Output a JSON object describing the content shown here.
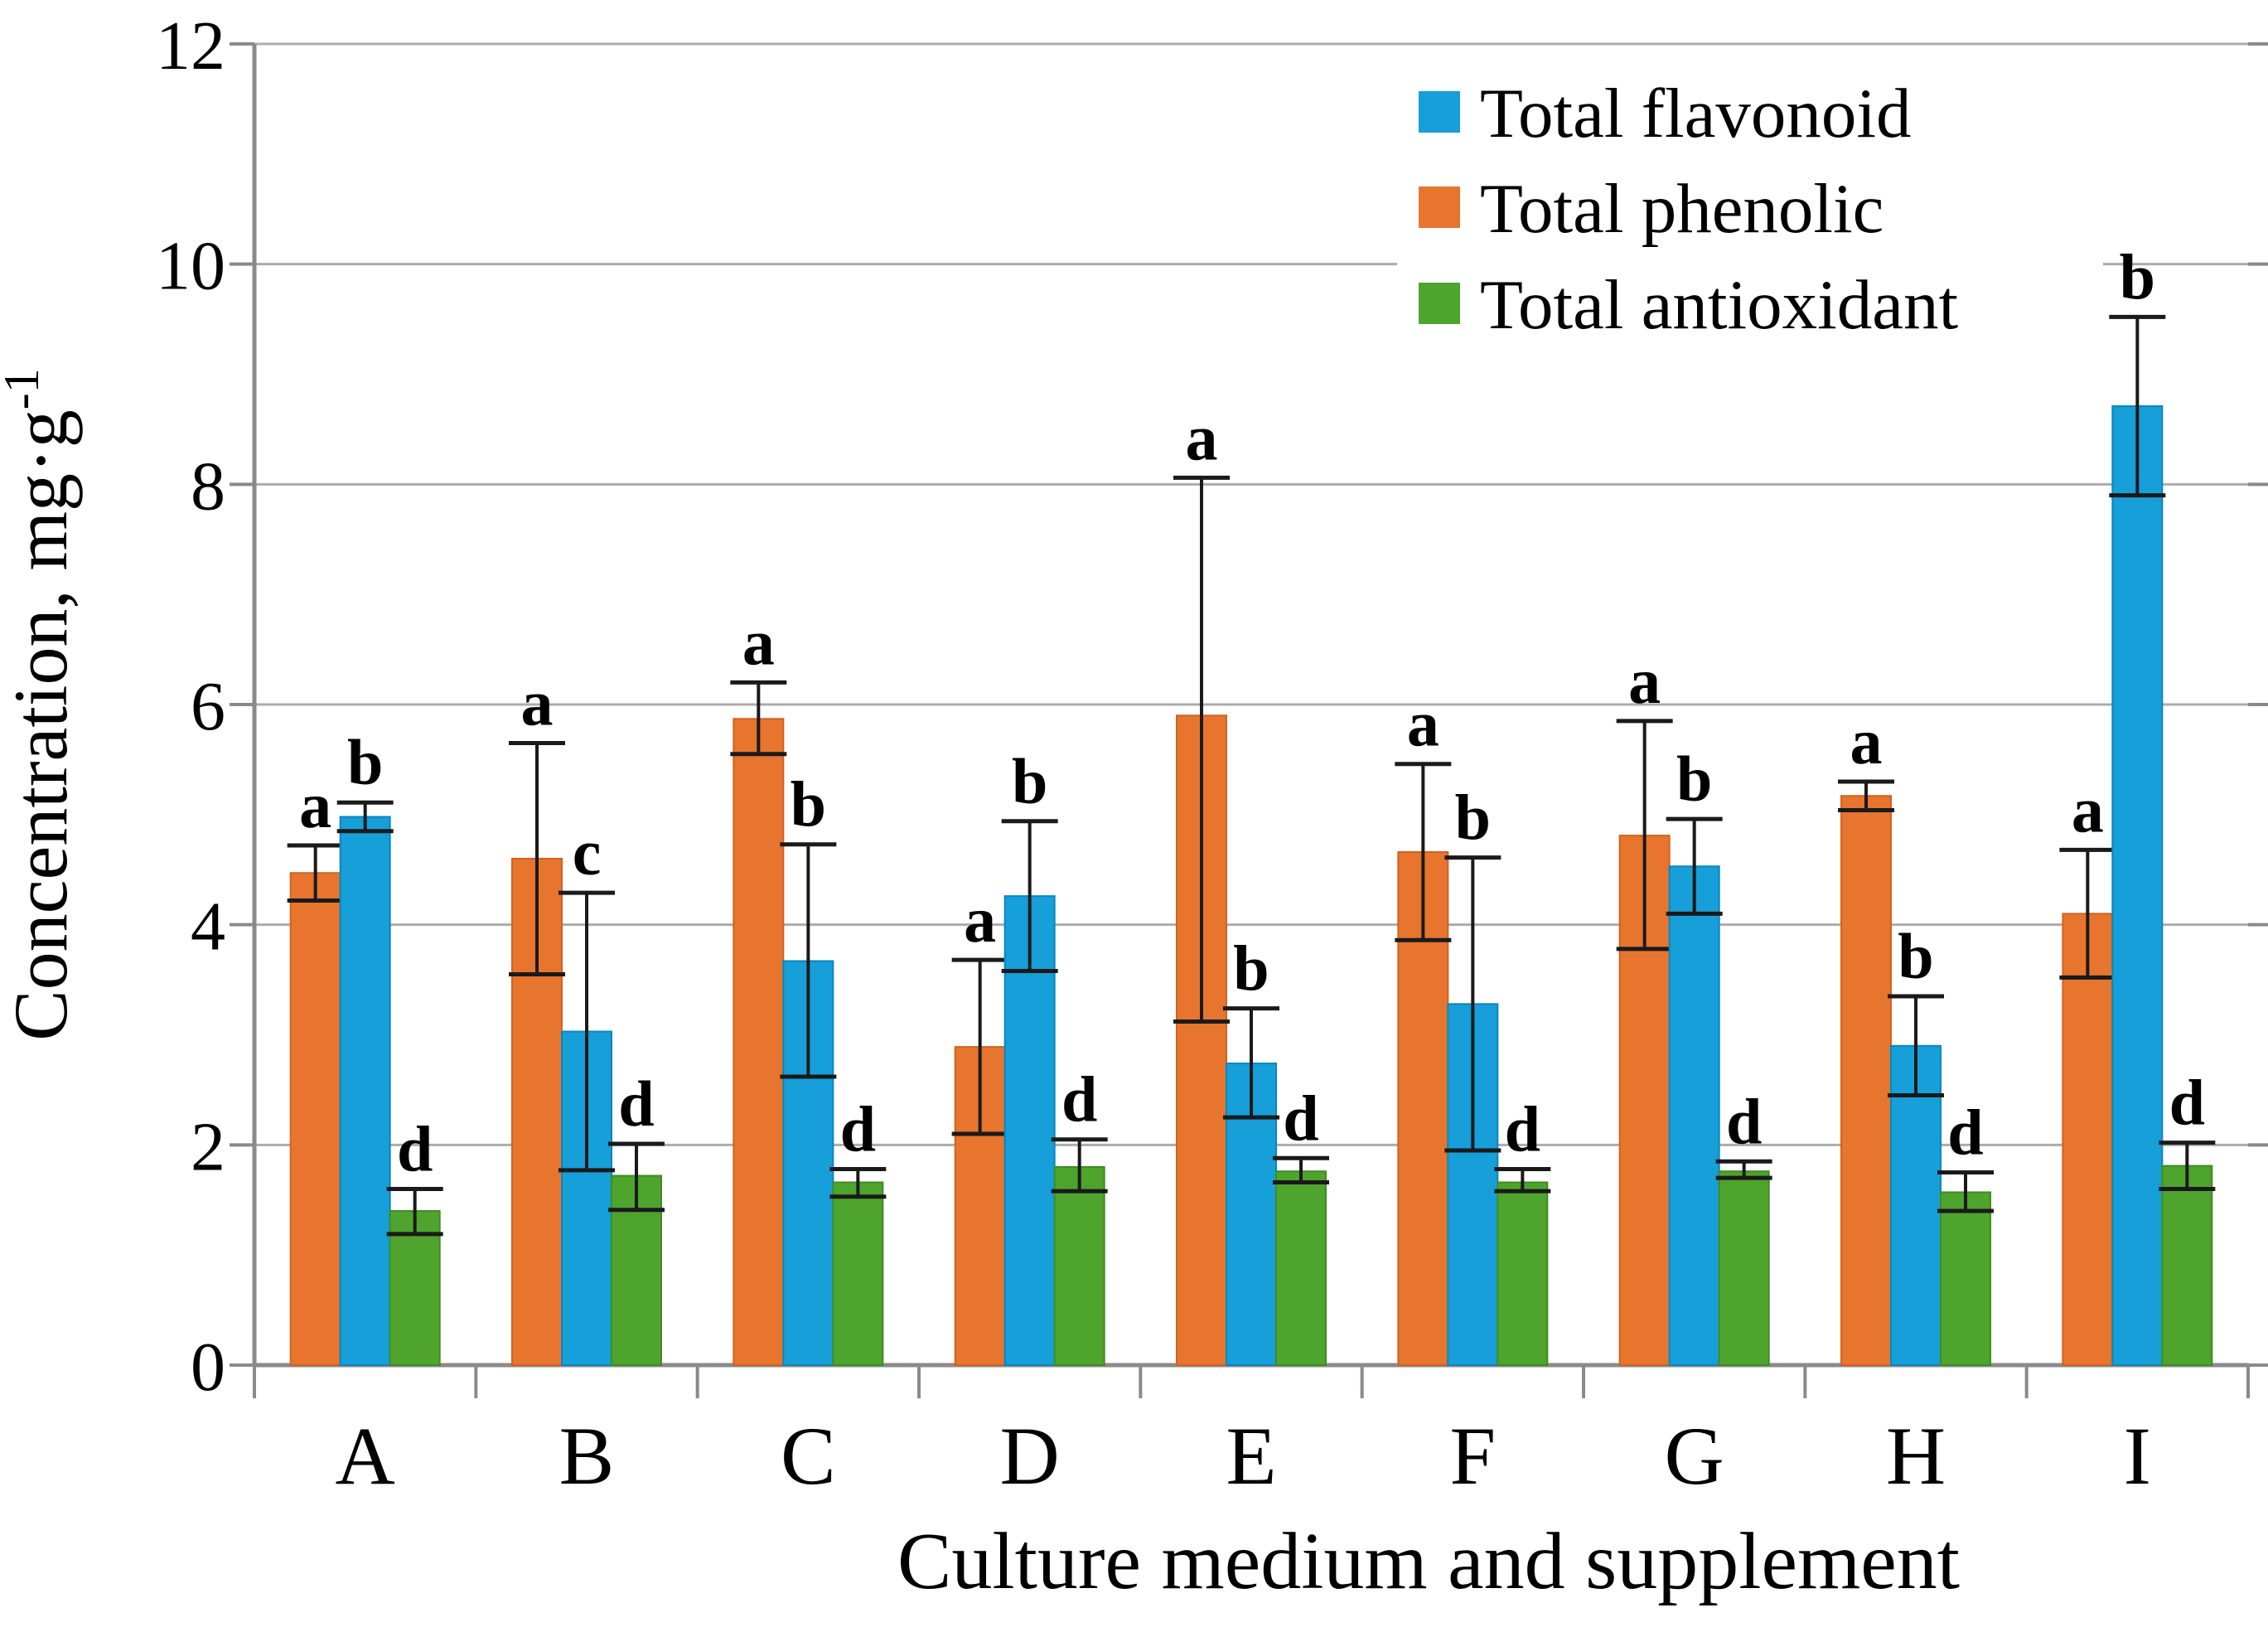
{
  "chart_data": {
    "type": "bar",
    "title": "",
    "xlabel": "Culture medium and supplement",
    "ylabel_main": "Concentration, mg·g",
    "ylabel_sup": "-1",
    "ylim": [
      0,
      12
    ],
    "yticks": [
      0,
      2,
      4,
      6,
      8,
      10,
      12
    ],
    "grid": true,
    "legend_position": "top-right",
    "categories": [
      "A",
      "B",
      "C",
      "D",
      "E",
      "F",
      "G",
      "H",
      "I"
    ],
    "group_bar_order": [
      1,
      0,
      2
    ],
    "series": [
      {
        "name": "Total flavonoid",
        "color": "#169FD9",
        "edge_color": "#0B86BC",
        "values": [
          4.98,
          3.03,
          3.67,
          4.26,
          2.74,
          3.28,
          4.53,
          2.9,
          8.71
        ],
        "err_up": [
          0.13,
          1.26,
          1.06,
          0.68,
          0.5,
          1.33,
          0.43,
          0.45,
          0.81
        ],
        "err_down": [
          0.13,
          1.26,
          1.05,
          0.68,
          0.49,
          1.33,
          0.43,
          0.45,
          0.81
        ],
        "letters": [
          "b",
          "c",
          "b",
          "b",
          "b",
          "b",
          "b",
          "b",
          "b"
        ]
      },
      {
        "name": "Total phenolic",
        "color": "#E7752E",
        "edge_color": "#D2621F",
        "values": [
          4.47,
          4.6,
          5.87,
          2.89,
          5.9,
          4.66,
          4.81,
          5.17,
          4.1
        ],
        "err_up": [
          0.25,
          1.05,
          0.33,
          0.79,
          2.16,
          0.8,
          1.04,
          0.13,
          0.58
        ],
        "err_down": [
          0.25,
          1.05,
          0.32,
          0.79,
          2.78,
          0.8,
          1.03,
          0.13,
          0.58
        ],
        "letters": [
          "a",
          "a",
          "a",
          "a",
          "a",
          "a",
          "a",
          "a",
          "a"
        ]
      },
      {
        "name": "Total antioxidant",
        "color": "#4EA42D",
        "edge_color": "#3F8C21",
        "values": [
          1.4,
          1.72,
          1.66,
          1.8,
          1.76,
          1.66,
          1.76,
          1.57,
          1.81
        ],
        "err_up": [
          0.2,
          0.29,
          0.12,
          0.25,
          0.12,
          0.12,
          0.09,
          0.18,
          0.21
        ],
        "err_down": [
          0.21,
          0.31,
          0.13,
          0.22,
          0.1,
          0.08,
          0.06,
          0.17,
          0.21
        ],
        "letters": [
          "d",
          "d",
          "d",
          "d",
          "d",
          "d",
          "d",
          "d",
          "d"
        ]
      }
    ],
    "style_colors": {
      "gridline": "#ACACAC",
      "axis": "#8A8A8A",
      "error_bar": "#1A1A1A",
      "text": "#000000",
      "background": "#FFFFFF"
    }
  }
}
